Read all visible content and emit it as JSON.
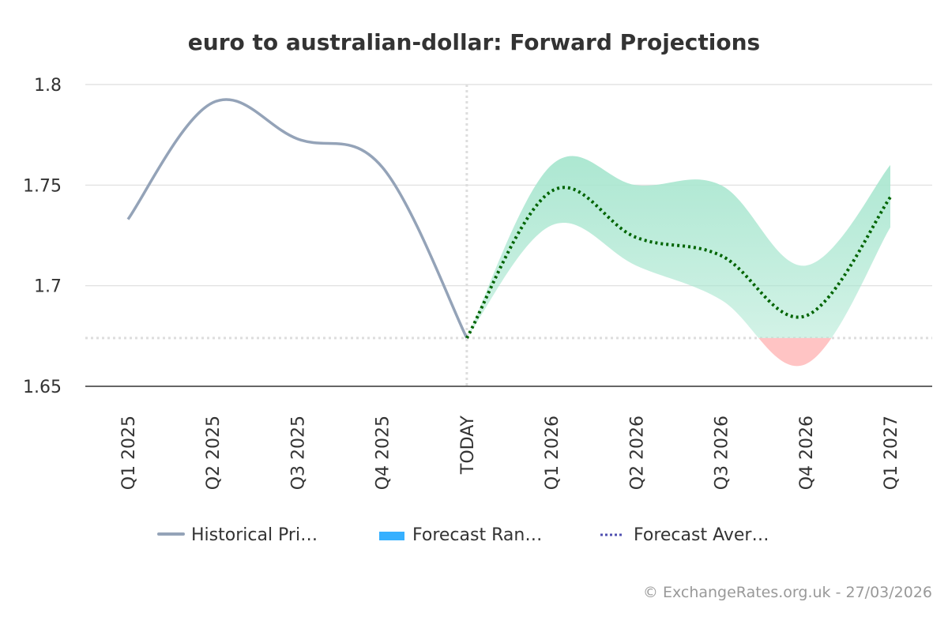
{
  "chart_data": {
    "type": "line",
    "title": "euro to australian-dollar: Forward Projections",
    "categories": [
      "Q1 2025",
      "Q2 2025",
      "Q3 2025",
      "Q4 2025",
      "TODAY",
      "Q1 2026",
      "Q2 2026",
      "Q3 2026",
      "Q4 2026",
      "Q1 2027"
    ],
    "ylim": [
      1.65,
      1.8
    ],
    "yticks": [
      "1.65",
      "1.7",
      "1.75",
      "1.8"
    ],
    "grid": true,
    "legend_placement": "bottom",
    "today_value": 1.674,
    "series": [
      {
        "name": "Historical Pri…",
        "type": "line",
        "color": "#94a3b8",
        "values": [
          1.733,
          1.791,
          1.773,
          1.759,
          1.674,
          null,
          null,
          null,
          null,
          null
        ]
      },
      {
        "name": "Forecast Ran…",
        "type": "range",
        "color": "#36b0ff",
        "fill_color": "#a8e6cf",
        "below_today_color": "#ffc4c4",
        "low": [
          null,
          null,
          null,
          null,
          1.674,
          1.73,
          1.71,
          1.693,
          1.661,
          1.729
        ],
        "high": [
          null,
          null,
          null,
          null,
          1.674,
          1.76,
          1.75,
          1.75,
          1.71,
          1.76
        ]
      },
      {
        "name": "Forecast Aver…",
        "type": "dotted-line",
        "color": "#006400",
        "legend_color": "#5050b0",
        "values": [
          null,
          null,
          null,
          null,
          1.674,
          1.747,
          1.724,
          1.715,
          1.685,
          1.744
        ]
      }
    ]
  },
  "credit": "© ExchangeRates.org.uk - 27/03/2026"
}
